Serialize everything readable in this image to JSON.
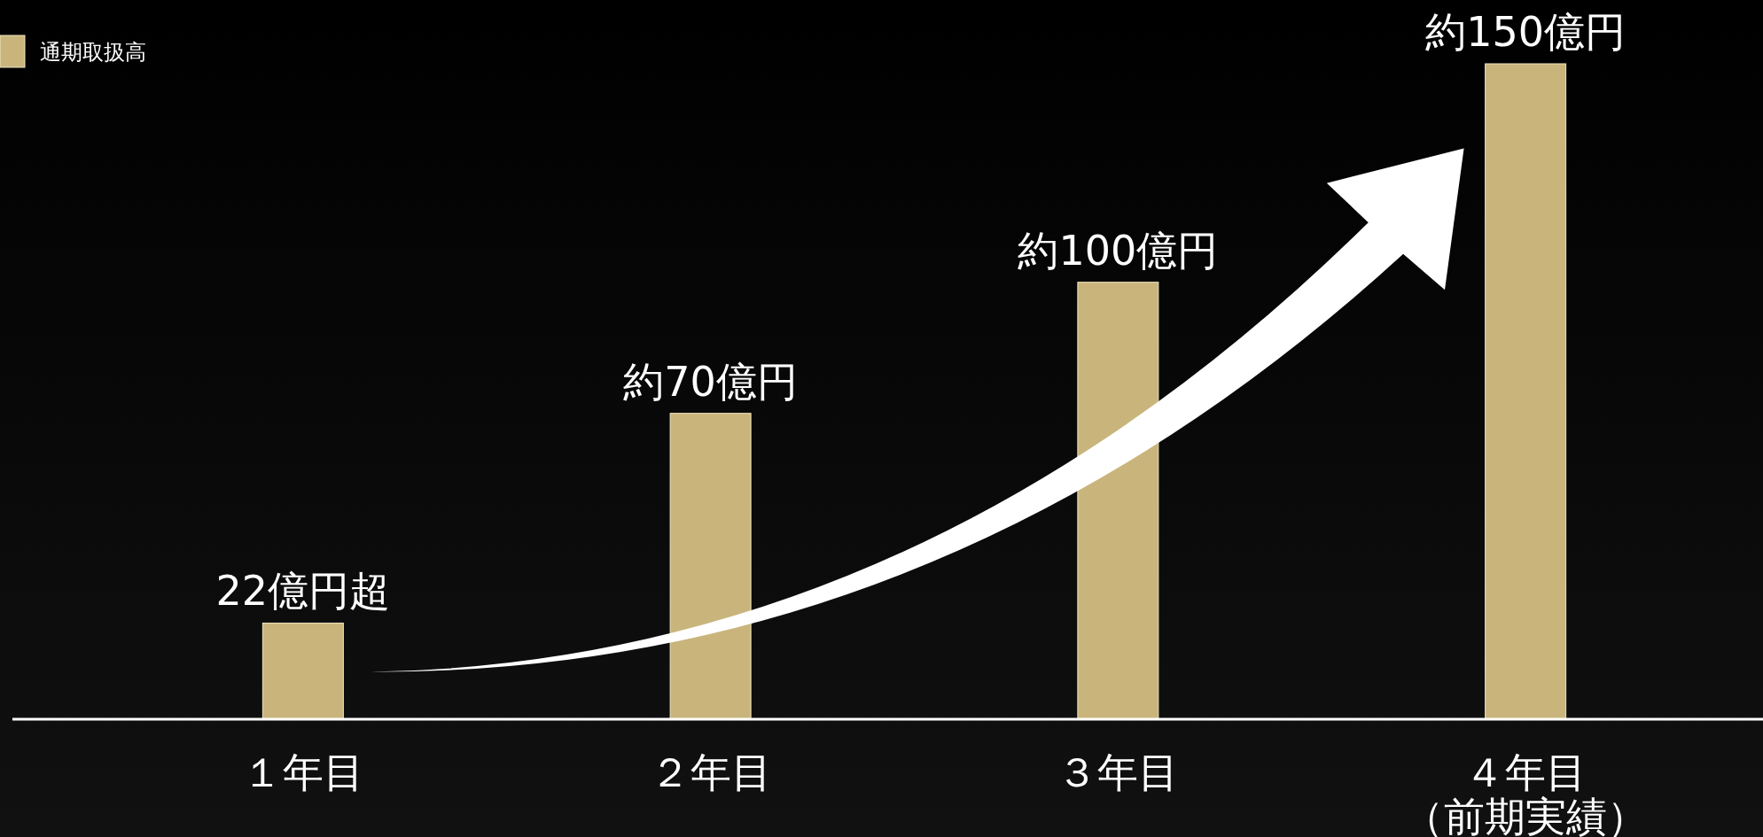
{
  "chart_data": {
    "type": "bar",
    "categories": [
      "１年目",
      "２年目",
      "３年目",
      "４年目（前期実績）"
    ],
    "series": [
      {
        "name": "通期取扱高",
        "color": "#c9b57c",
        "values": [
          22,
          70,
          100,
          150
        ],
        "value_labels": [
          "22億円超",
          "約70億円",
          "約100億円",
          "約150億円"
        ]
      }
    ],
    "legend": "top left"
  }
}
